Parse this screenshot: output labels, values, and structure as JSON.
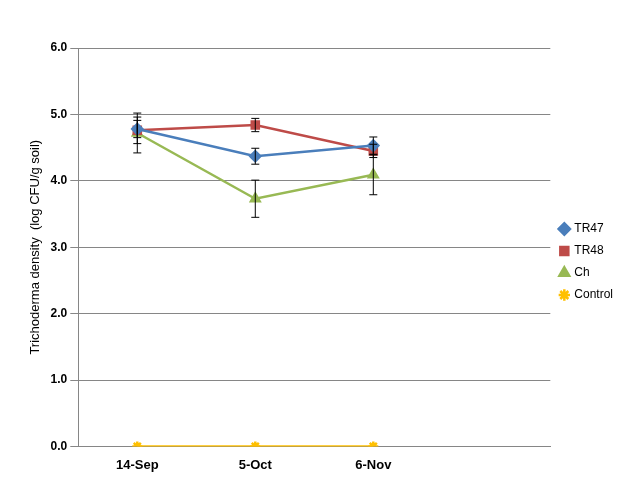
{
  "chart_data": {
    "type": "line",
    "categories": [
      "14-Sep",
      "5-Oct",
      "6-Nov",
      null
    ],
    "y_label": "Trichoderma density  (log CFU/g soil)",
    "ylim": [
      0,
      6
    ],
    "yticks": [
      {
        "value": 0,
        "label": "0.0"
      },
      {
        "value": 1,
        "label": "1.0"
      },
      {
        "value": 2,
        "label": "2.0"
      },
      {
        "value": 3,
        "label": "3.0"
      },
      {
        "value": 4,
        "label": "4.0"
      },
      {
        "value": 5,
        "label": "5.0"
      },
      {
        "value": 6,
        "label": "6.0"
      }
    ],
    "grid": true,
    "legend": "right",
    "series": [
      {
        "name": "TR47",
        "color": "#4a7ebb",
        "marker": "diamond",
        "values": [
          4.78,
          4.37,
          4.53,
          null
        ],
        "errors": [
          0.13,
          0.12,
          0.13,
          null
        ]
      },
      {
        "name": "TR48",
        "color": "#be4b48",
        "marker": "square",
        "values": [
          4.76,
          4.84,
          4.45,
          null
        ],
        "errors": [
          0.2,
          0.1,
          0.1,
          null
        ]
      },
      {
        "name": "Ch",
        "color": "#98b954",
        "marker": "triangle",
        "values": [
          4.72,
          3.73,
          4.09,
          null
        ],
        "errors": [
          0.3,
          0.28,
          0.3,
          null
        ]
      },
      {
        "name": "Control",
        "color": "#ffc000",
        "marker": "star",
        "values": [
          0,
          0,
          0,
          null
        ]
      }
    ]
  }
}
